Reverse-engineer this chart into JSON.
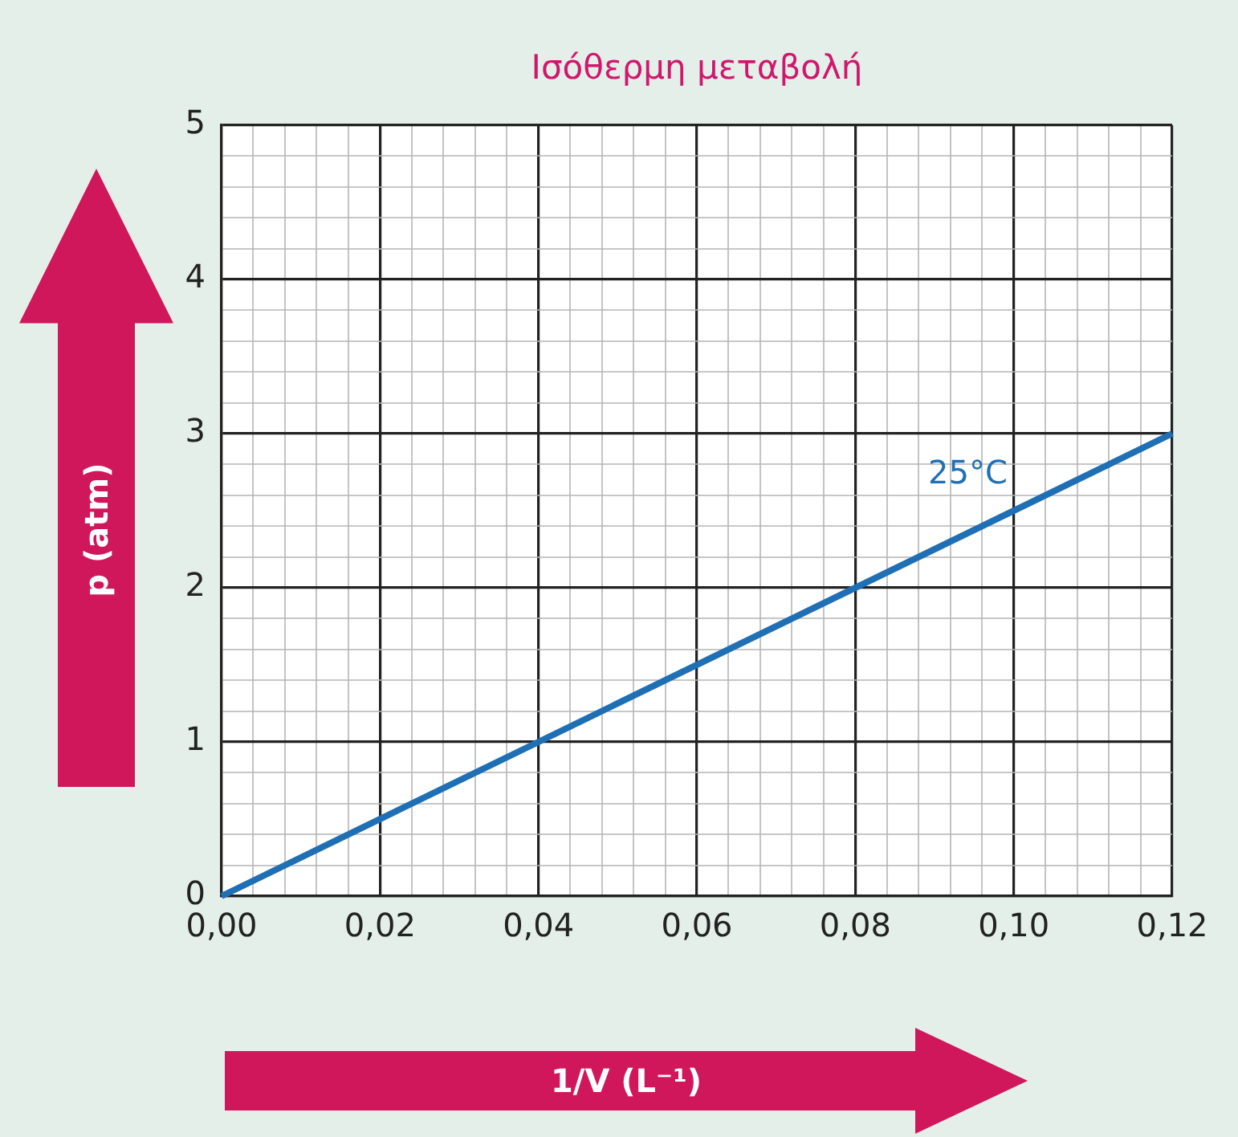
{
  "chart_data": {
    "type": "line",
    "title": "Ισόθερμη μεταβολή",
    "xlabel": "1/V (L⁻¹)",
    "ylabel": "p (atm)",
    "series": [
      {
        "color": "#1f6fb5",
        "x": [
          0,
          0.12
        ],
        "values": [
          0,
          3
        ]
      }
    ],
    "xlim": [
      0,
      0.12
    ],
    "ylim": [
      0,
      5
    ],
    "xticks": [
      {
        "value": 0,
        "label": "0,00"
      },
      {
        "value": 0.004,
        "label": null
      },
      {
        "value": 0.008,
        "label": null
      },
      {
        "value": 0.012,
        "label": null
      },
      {
        "value": 0.016,
        "label": null
      },
      {
        "value": 0.02,
        "label": "0,02"
      },
      {
        "value": 0.024,
        "label": null
      },
      {
        "value": 0.028,
        "label": null
      },
      {
        "value": 0.032,
        "label": null
      },
      {
        "value": 0.036,
        "label": null
      },
      {
        "value": 0.04,
        "label": "0,04"
      },
      {
        "value": 0.044,
        "label": null
      },
      {
        "value": 0.048,
        "label": null
      },
      {
        "value": 0.052,
        "label": null
      },
      {
        "value": 0.056,
        "label": null
      },
      {
        "value": 0.06,
        "label": "0,06"
      },
      {
        "value": 0.064,
        "label": null
      },
      {
        "value": 0.068,
        "label": null
      },
      {
        "value": 0.072,
        "label": null
      },
      {
        "value": 0.076,
        "label": null
      },
      {
        "value": 0.08,
        "label": "0,08"
      },
      {
        "value": 0.084,
        "label": null
      },
      {
        "value": 0.088,
        "label": null
      },
      {
        "value": 0.092,
        "label": null
      },
      {
        "value": 0.096,
        "label": null
      },
      {
        "value": 0.1,
        "label": "0,10"
      },
      {
        "value": 0.104,
        "label": null
      },
      {
        "value": 0.108,
        "label": null
      },
      {
        "value": 0.112,
        "label": null
      },
      {
        "value": 0.116,
        "label": null
      },
      {
        "value": 0.12,
        "label": "0,12"
      }
    ],
    "yticks": [
      0,
      {
        "value": 0.2,
        "label": null
      },
      {
        "value": 0.4,
        "label": null
      },
      {
        "value": 0.6,
        "label": null
      },
      {
        "value": 0.8,
        "label": null
      },
      1,
      {
        "value": 1.2,
        "label": null
      },
      {
        "value": 1.4,
        "label": null
      },
      {
        "value": 1.6,
        "label": null
      },
      {
        "value": 1.8,
        "label": null
      },
      2,
      {
        "value": 2.2,
        "label": null
      },
      {
        "value": 2.4,
        "label": null
      },
      {
        "value": 2.6,
        "label": null
      },
      {
        "value": 2.8,
        "label": null
      },
      3,
      {
        "value": 3.2,
        "label": null
      },
      {
        "value": 3.4,
        "label": null
      },
      {
        "value": 3.6,
        "label": null
      },
      {
        "value": 3.8,
        "label": null
      },
      4,
      {
        "value": 4.2,
        "label": null
      },
      {
        "value": 4.4,
        "label": null
      },
      {
        "value": 4.6,
        "label": null
      },
      {
        "value": 4.8,
        "label": null
      },
      5
    ],
    "annotations": [
      "25°C"
    ],
    "grid": true,
    "legend": false,
    "marker": "none",
    "line_style": "solid"
  }
}
